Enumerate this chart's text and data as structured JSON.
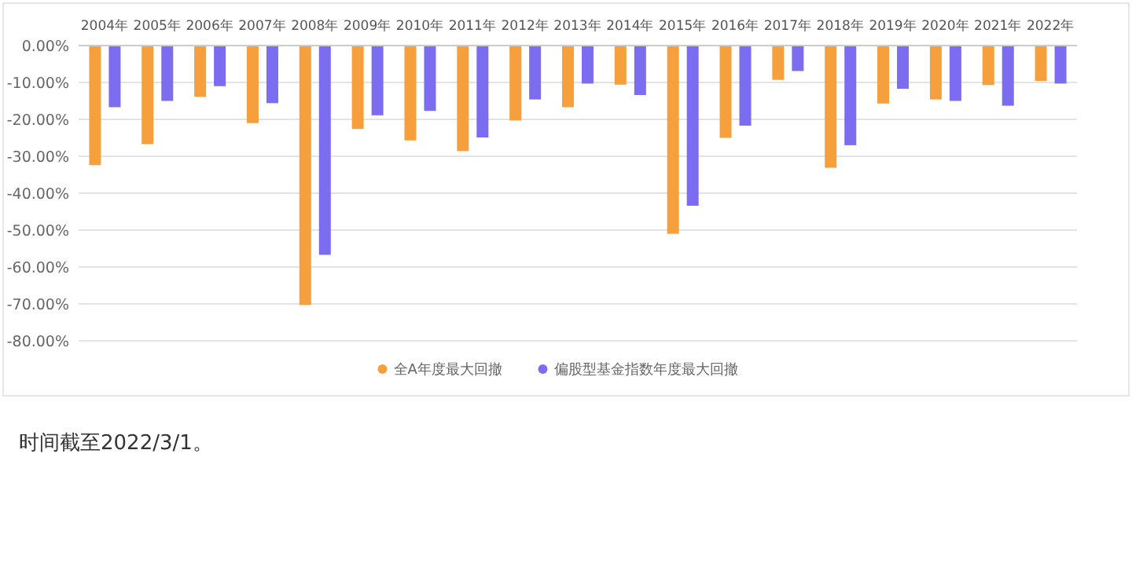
{
  "chart_data": {
    "type": "bar",
    "categories": [
      "2004年",
      "2005年",
      "2006年",
      "2007年",
      "2008年",
      "2009年",
      "2010年",
      "2011年",
      "2012年",
      "2013年",
      "2014年",
      "2015年",
      "2016年",
      "2017年",
      "2018年",
      "2019年",
      "2020年",
      "2021年",
      "2022年"
    ],
    "series": [
      {
        "name": "全A年度最大回撤",
        "color": "#f5a03c",
        "values": [
          -32.4,
          -26.7,
          -13.9,
          -21,
          -70.3,
          -22.6,
          -25.7,
          -28.6,
          -20.3,
          -16.7,
          -10.6,
          -51,
          -25,
          -9.3,
          -33.1,
          -15.7,
          -14.6,
          -10.7,
          -9.6
        ]
      },
      {
        "name": "偏股型基金指数年度最大回撤",
        "color": "#7b6cf0",
        "values": [
          -16.7,
          -15,
          -11,
          -15.6,
          -56.7,
          -18.9,
          -17.7,
          -24.9,
          -14.6,
          -10.3,
          -13.4,
          -43.4,
          -21.7,
          -6.9,
          -27,
          -11.7,
          -15,
          -16.3,
          -10.3
        ]
      }
    ],
    "ylim": [
      -80,
      0
    ],
    "yticks": [
      {
        "value": 0,
        "label": "0.00%"
      },
      {
        "value": -10,
        "label": "-10.00%"
      },
      {
        "value": -20,
        "label": "-20.00%"
      },
      {
        "value": -30,
        "label": "-30.00%"
      },
      {
        "value": -40,
        "label": "-40.00%"
      },
      {
        "value": -50,
        "label": "-50.00%"
      },
      {
        "value": -60,
        "label": "-60.00%"
      },
      {
        "value": -70,
        "label": "-70.00%"
      },
      {
        "value": -80,
        "label": "-80.00%"
      }
    ],
    "grid": "y",
    "legend": "bottom",
    "annotations": [
      "时间截至2022/3/1。"
    ]
  }
}
